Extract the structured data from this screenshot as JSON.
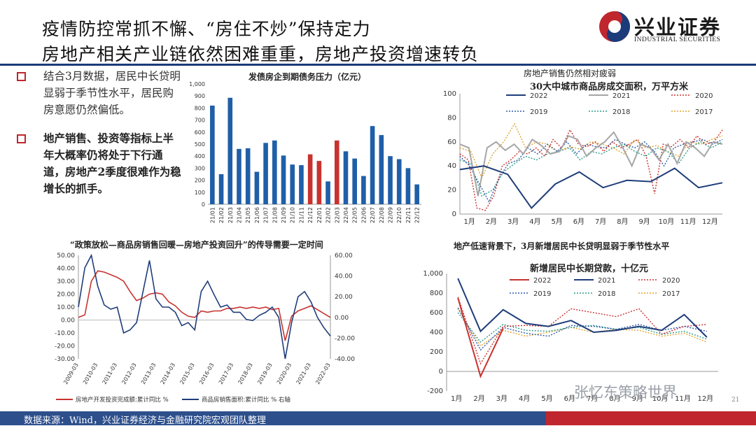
{
  "header": {
    "title_line1": "疫情防控常抓不懈、“房住不炒”保持定力",
    "title_line2": "房地产相关产业链依然困难重重，房地产投资增速转负",
    "logo_cn": "兴业证券",
    "logo_en": "INDUSTRIAL SECURITIES"
  },
  "bullets": [
    "结合3月数据，居民中长贷明显弱于季节性水平，居民购房意愿仍然偏低。",
    "地产销售、投资等指标上半年大概率仍将处于下行通道，房地产2季度很难作为稳增长的抓手。"
  ],
  "footer": {
    "source": "数据来源：Wind，兴业证券经济与金融研究院宏观团队整理",
    "page": "21"
  },
  "watermark": "张忆东策略世界",
  "colors": {
    "navy": "#1f3d7a",
    "red": "#c8332f",
    "bar_blue": "#1f5fa8",
    "footer": "#2d4f8c"
  },
  "chart_data": [
    {
      "type": "bar",
      "title": "发债房企到期债务压力（亿元）",
      "categories": [
        "21/01",
        "21/02",
        "21/03",
        "21/04",
        "21/05",
        "21/06",
        "21/07",
        "21/08",
        "21/09",
        "21/10",
        "21/11",
        "21/12",
        "22/01",
        "22/02",
        "22/03",
        "22/04",
        "22/05",
        "22/06",
        "22/07",
        "22/08",
        "22/09",
        "22/10",
        "22/11",
        "22/12"
      ],
      "values": [
        820,
        250,
        885,
        460,
        465,
        270,
        510,
        530,
        405,
        330,
        325,
        415,
        360,
        190,
        530,
        440,
        380,
        235,
        650,
        575,
        400,
        375,
        300,
        165
      ],
      "highlight_categories": [
        "21/12",
        "22/01",
        "22/03"
      ],
      "yticks": [
        "0",
        "100",
        "200",
        "300",
        "400",
        "500",
        "600",
        "700",
        "800",
        "900",
        "1,000"
      ],
      "ylim": [
        0,
        1000
      ]
    },
    {
      "type": "line",
      "subtitle": "房地产销售仍然相对疲弱",
      "title": "30大中城市商品房成交面积，万平方米",
      "xticks": [
        "1月",
        "2月",
        "3月",
        "4月",
        "5月",
        "6月",
        "7月",
        "8月",
        "9月",
        "10月",
        "11月",
        "12月"
      ],
      "yticks": [
        "0",
        "20",
        "40",
        "60",
        "80",
        "100"
      ],
      "ylim": [
        0,
        100
      ],
      "series": [
        {
          "name": "2022",
          "color": "#1f3d7a",
          "style": "solid",
          "values": [
            37,
            40,
            33,
            5,
            25,
            35,
            22,
            28,
            27,
            38,
            22,
            26
          ]
        },
        {
          "name": "2021",
          "color": "#a6a6a6",
          "style": "solid",
          "values": [
            58,
            55,
            15,
            55,
            60,
            53,
            58,
            50,
            62,
            57,
            50,
            52,
            65,
            62,
            48,
            55,
            60,
            68,
            55,
            40,
            58,
            55,
            45,
            58,
            42,
            60,
            55,
            48,
            60,
            58
          ]
        },
        {
          "name": "2020",
          "color": "#c8332f",
          "style": "dotted",
          "values": [
            50,
            45,
            5,
            3,
            15,
            40,
            45,
            52,
            50,
            55,
            48,
            62,
            55,
            70,
            58,
            56,
            60,
            52,
            60,
            55,
            58,
            62,
            48,
            17,
            58,
            56,
            62,
            55,
            65,
            58,
            60,
            70
          ]
        },
        {
          "name": "2019",
          "color": "#2e5aa8",
          "style": "dotted",
          "values": [
            48,
            40,
            25,
            10,
            30,
            42,
            45,
            55,
            50,
            58,
            52,
            60,
            50,
            58,
            56,
            55,
            62,
            58,
            55,
            60,
            52,
            40,
            55,
            58,
            60,
            62,
            58,
            62
          ]
        },
        {
          "name": "2018",
          "color": "#2e9e8a",
          "style": "dotted",
          "values": [
            45,
            42,
            15,
            20,
            35,
            42,
            48,
            45,
            50,
            52,
            55,
            45,
            52,
            50,
            55,
            58,
            52,
            48,
            55,
            52,
            42,
            55,
            60,
            55,
            60
          ]
        },
        {
          "name": "2017",
          "color": "#e3a32e",
          "style": "dotted",
          "values": [
            55,
            52,
            30,
            50,
            60,
            75,
            55,
            60,
            58,
            52,
            56,
            54,
            60,
            58,
            55,
            50,
            62,
            55,
            57,
            52,
            48,
            60,
            58,
            62,
            65
          ]
        }
      ]
    },
    {
      "type": "line",
      "title": "“政策放松—商品房销售回暖—房地产投资回升”的传导需要一定时间",
      "xticks": [
        "2009-03",
        "2010-03",
        "2011-03",
        "2012-03",
        "2013-03",
        "2014-03",
        "2015-03",
        "2016-03",
        "2017-03",
        "2018-03",
        "2019-03",
        "2020-03",
        "2021-03",
        "2022-03"
      ],
      "yticks_left": [
        "-30.00",
        "-20.00",
        "-10.00",
        "0.00",
        "10.00",
        "20.00",
        "30.00",
        "40.00",
        "50.00"
      ],
      "yticks_right": [
        "-40.00",
        "-20.00",
        "0.00",
        "20.00",
        "40.00",
        "60.00"
      ],
      "ylim_left": [
        -30,
        50
      ],
      "ylim_right": [
        -40,
        60
      ],
      "series": [
        {
          "name": "房地产开发投资完成额:累计同比 %",
          "axis": "left",
          "color": "#c8332f",
          "values": [
            2,
            4,
            30,
            38,
            37,
            35,
            33,
            30,
            22,
            15,
            17,
            20,
            21,
            20,
            14,
            11,
            6,
            3,
            2,
            7,
            6,
            7,
            7,
            9,
            9,
            10,
            9,
            10,
            9,
            10,
            8,
            9,
            -16,
            3,
            7,
            9,
            11,
            8,
            5,
            2
          ]
        },
        {
          "name": "商品房销售面积:累计同比 % 右轴",
          "axis": "right",
          "color": "#1f3d7a",
          "values": [
            10,
            48,
            60,
            30,
            12,
            8,
            10,
            -15,
            -12,
            -5,
            25,
            55,
            18,
            10,
            10,
            5,
            -8,
            -5,
            -12,
            25,
            35,
            22,
            10,
            12,
            5,
            5,
            -2,
            -3,
            2,
            5,
            10,
            0,
            -40,
            -5,
            20,
            25,
            15,
            0,
            -10,
            -18
          ]
        }
      ]
    },
    {
      "type": "line",
      "subtitle": "地产低速背景下，3月新增居民中长贷明显弱于季节性水平",
      "title": "新增居民中长期贷款，十亿元",
      "xticks": [
        "1月",
        "2月",
        "3月",
        "4月",
        "5月",
        "6月",
        "7月",
        "8月",
        "9月",
        "10月",
        "11月",
        "12月"
      ],
      "yticks": [
        "-200",
        "0",
        "200",
        "400",
        "600",
        "800",
        "1,000"
      ],
      "ylim": [
        -200,
        1000
      ],
      "series": [
        {
          "name": "2022",
          "color": "#c8332f",
          "style": "solid",
          "values": [
            750,
            -50,
            440
          ]
        },
        {
          "name": "2021",
          "color": "#1f3d7a",
          "style": "solid",
          "values": [
            950,
            410,
            630,
            490,
            460,
            520,
            400,
            420,
            460,
            420,
            580,
            350
          ]
        },
        {
          "name": "2020",
          "color": "#c8332f",
          "style": "dotted",
          "values": [
            760,
            80,
            460,
            470,
            460,
            640,
            600,
            560,
            640,
            380,
            460,
            480
          ]
        },
        {
          "name": "2019",
          "color": "#2e5aa8",
          "style": "dotted",
          "values": [
            650,
            220,
            450,
            390,
            360,
            470,
            460,
            430,
            480,
            420,
            460,
            410
          ]
        },
        {
          "name": "2018",
          "color": "#2e9e8a",
          "style": "dotted",
          "values": [
            600,
            300,
            480,
            420,
            410,
            450,
            470,
            430,
            450,
            380,
            410,
            330
          ]
        },
        {
          "name": "2017",
          "color": "#e3a32e",
          "style": "dotted",
          "values": [
            640,
            260,
            420,
            360,
            400,
            450,
            400,
            430,
            420,
            360,
            390,
            300
          ]
        }
      ]
    }
  ]
}
